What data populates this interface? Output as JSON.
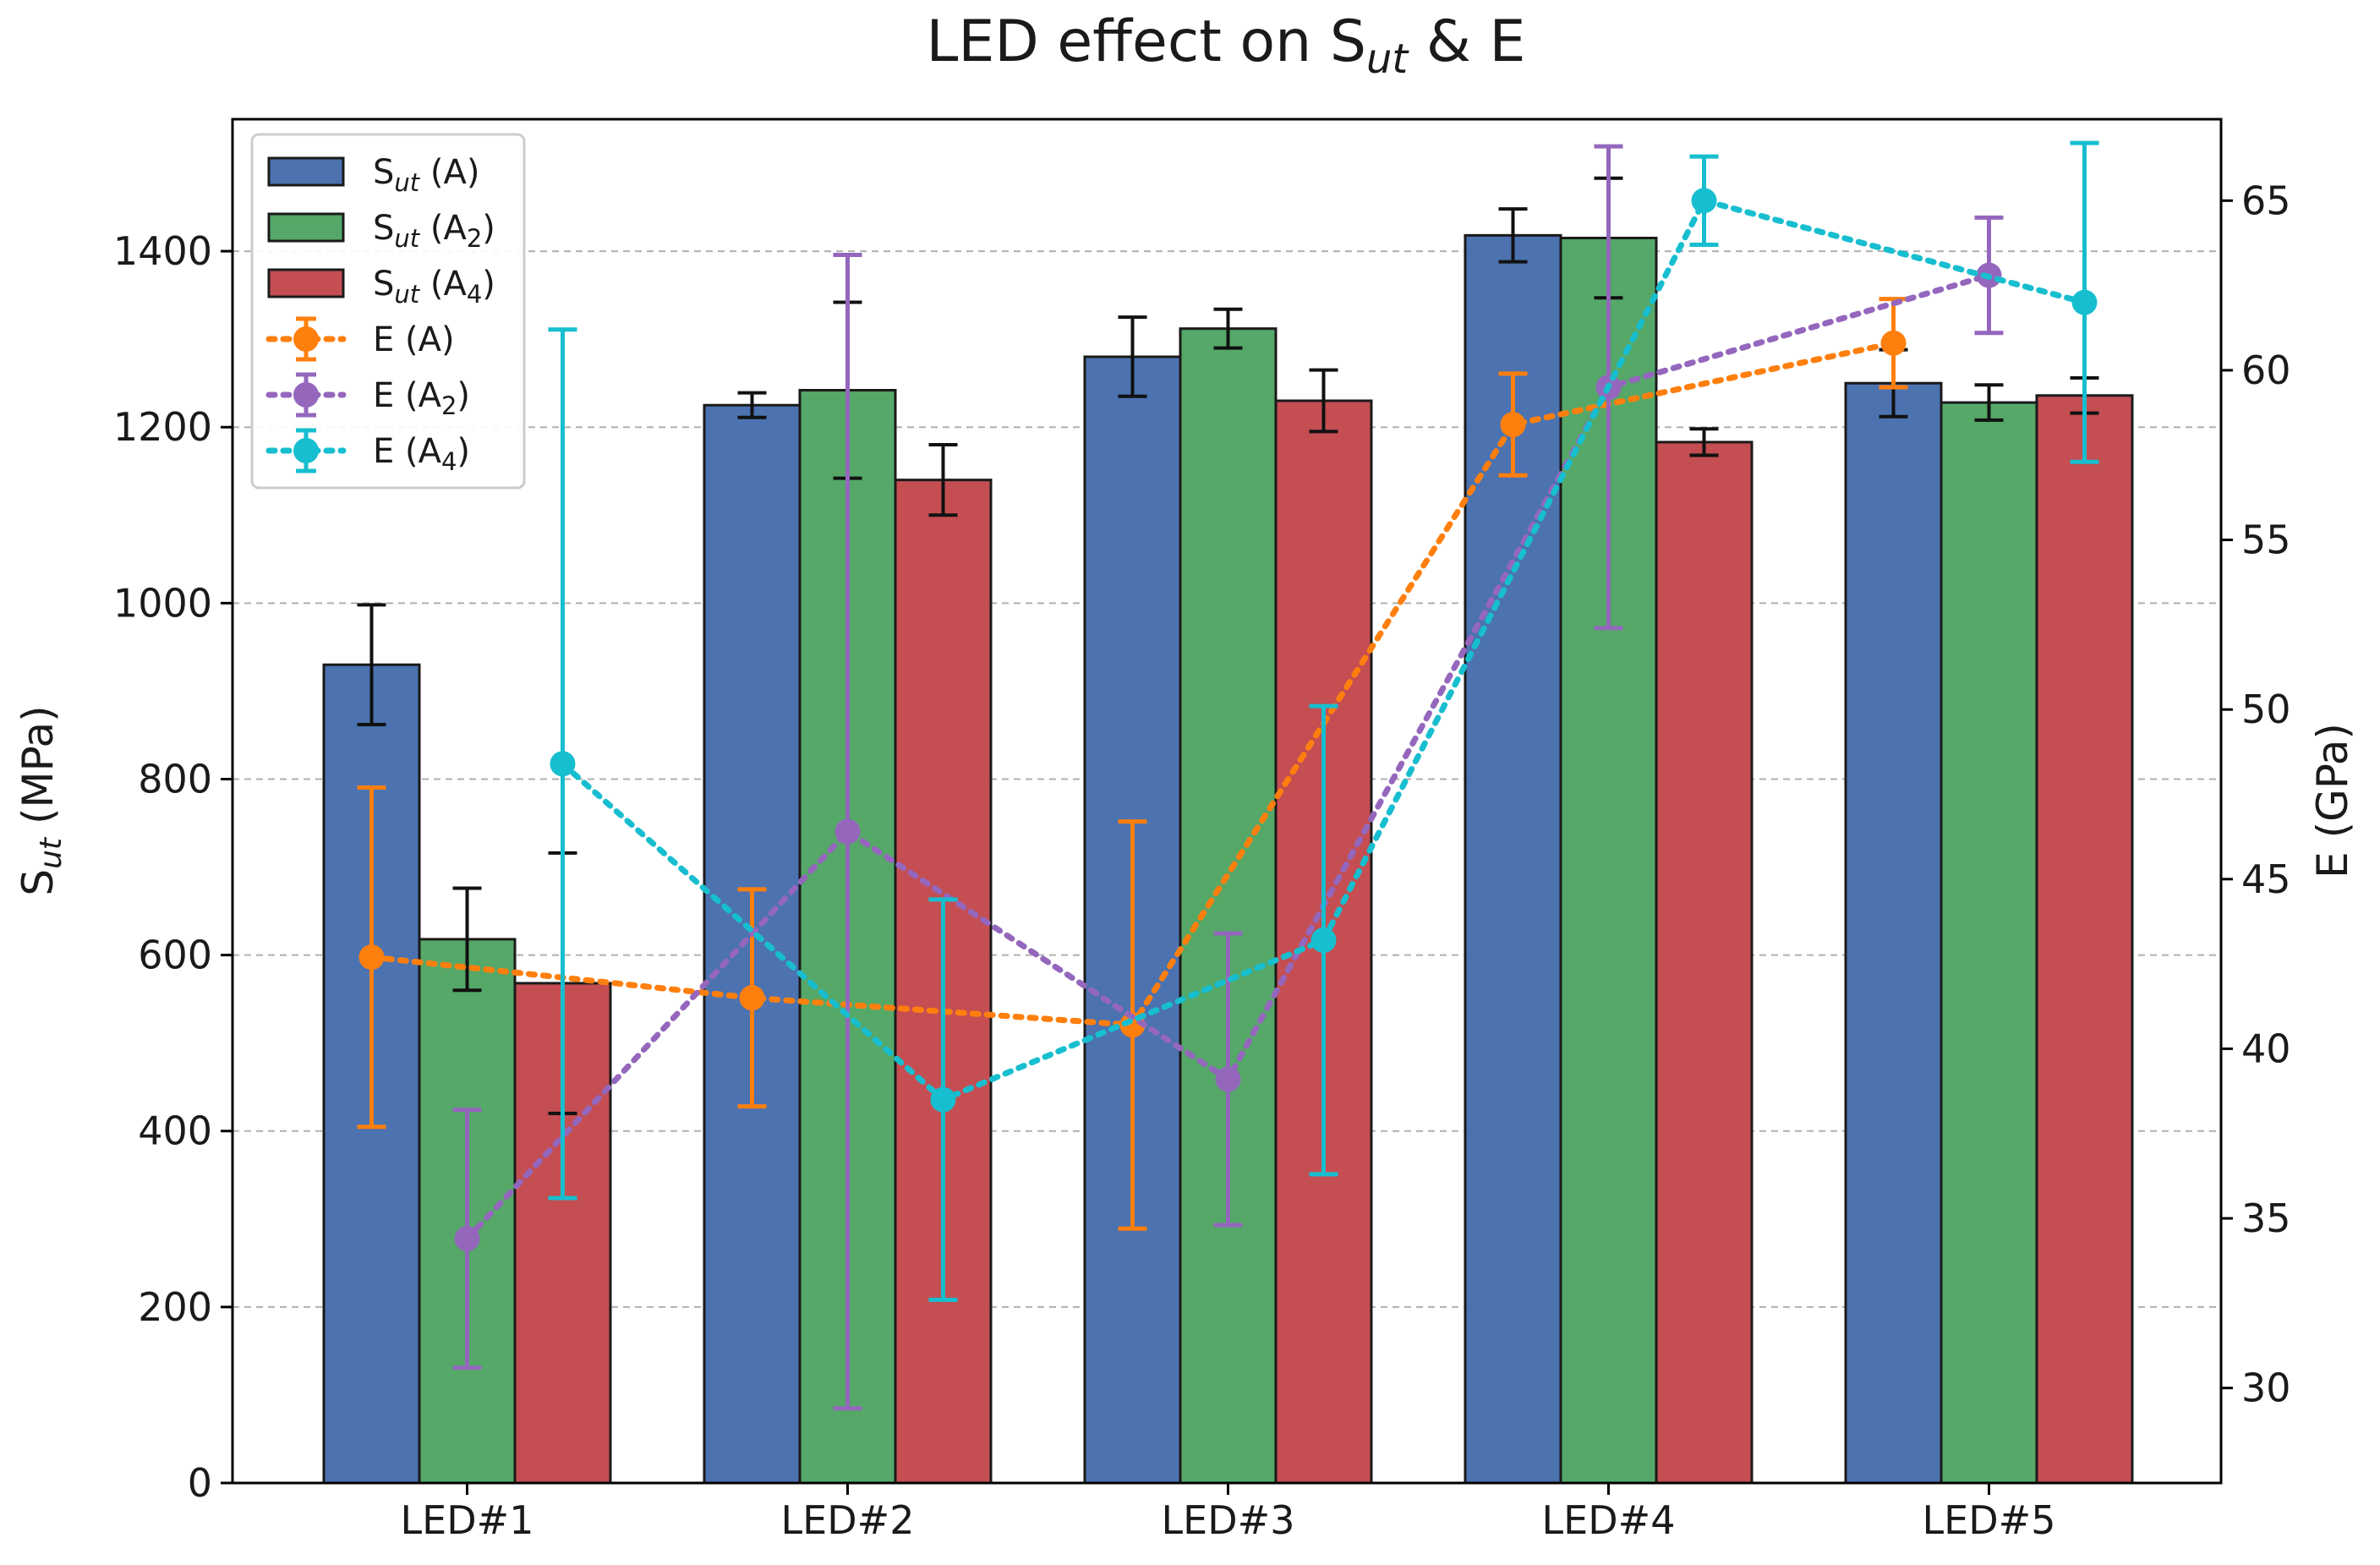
{
  "chart_data": {
    "type": "bar",
    "title": "LED effect on Sut & E",
    "title_main": "LED effect on S",
    "title_sub": "ut",
    "title_suffix": " & E",
    "categories": [
      "LED#1",
      "LED#2",
      "LED#3",
      "LED#4",
      "LED#5"
    ],
    "ylabel": "Sut (MPa)",
    "ylabel_main": "S",
    "ylabel_sub": "ut",
    "ylabel_suffix": " (MPa)",
    "y2label": "E (GPa)",
    "ylim": [
      0,
      1550
    ],
    "y2lim": [
      27.2,
      67.4
    ],
    "yticks": [
      0,
      200,
      400,
      600,
      800,
      1000,
      1200,
      1400
    ],
    "y2ticks": [
      30,
      35,
      40,
      45,
      50,
      55,
      60,
      65
    ],
    "grid": true,
    "legend_position": "top-left",
    "bar_series": [
      {
        "name": "Sut (A)",
        "label_main": "S",
        "label_sub": "ut",
        "label_rest": " (A)",
        "label_rest_sub": "",
        "label_close": "",
        "color": "#4c72b0",
        "values": [
          930,
          1225,
          1280,
          1418,
          1250
        ],
        "errors": [
          68,
          14,
          45,
          30,
          38
        ]
      },
      {
        "name": "Sut (A2)",
        "label_main": "S",
        "label_sub": "ut",
        "label_rest": " (A",
        "label_rest_sub": "2",
        "label_close": ")",
        "color": "#55a868",
        "values": [
          618,
          1242,
          1312,
          1415,
          1228
        ],
        "errors": [
          58,
          100,
          22,
          68,
          20
        ]
      },
      {
        "name": "Sut (A4)",
        "label_main": "S",
        "label_sub": "ut",
        "label_rest": " (A",
        "label_rest_sub": "4",
        "label_close": ")",
        "color": "#c44e52",
        "values": [
          568,
          1140,
          1230,
          1183,
          1236
        ],
        "errors": [
          148,
          40,
          35,
          15,
          20
        ]
      }
    ],
    "line_series": [
      {
        "name": "E (A)",
        "label_main": "E (A",
        "label_sub": "",
        "label_close": ")",
        "color": "#ff7f0e",
        "values": [
          42.7,
          41.5,
          40.7,
          58.4,
          60.8
        ],
        "errors": [
          5.0,
          3.2,
          6.0,
          1.5,
          1.3
        ]
      },
      {
        "name": "E (A2)",
        "label_main": "E (A",
        "label_sub": "2",
        "label_close": ")",
        "color": "#9467bd",
        "values": [
          34.4,
          46.4,
          39.1,
          59.5,
          62.8
        ],
        "errors": [
          3.8,
          17.0,
          4.3,
          7.1,
          1.7
        ]
      },
      {
        "name": "E (A4)",
        "label_main": "E (A",
        "label_sub": "4",
        "label_close": ")",
        "color": "#17becf",
        "values": [
          48.4,
          38.5,
          43.2,
          65.0,
          62.0
        ],
        "errors": [
          12.8,
          5.9,
          6.9,
          1.3,
          4.7
        ]
      }
    ]
  }
}
